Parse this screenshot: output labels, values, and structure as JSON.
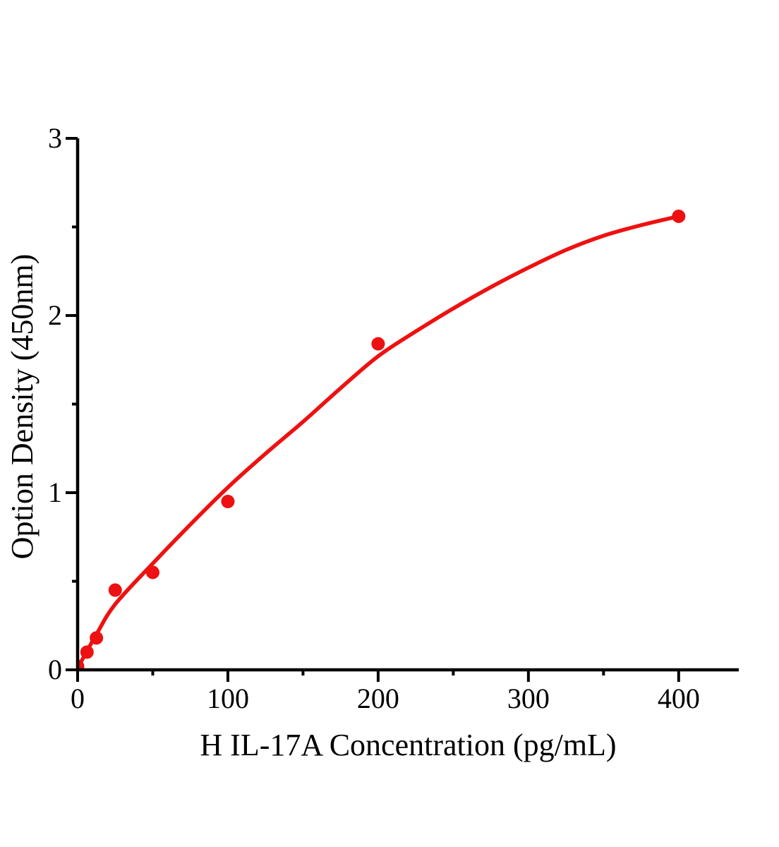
{
  "figure": {
    "background": "#ffffff",
    "text_color": "#000000"
  },
  "chart_data": {
    "type": "scatter",
    "title": "",
    "xlabel": "H IL-17A Concentration (pg/mL)",
    "ylabel": "Option Density (450nm)",
    "xlim": [
      0,
      440
    ],
    "ylim": [
      0,
      3
    ],
    "grid": false,
    "legend": false,
    "axis_color": "#000000",
    "accent_color": "#ee1111",
    "x_major_ticks": [
      0,
      100,
      200,
      300,
      400
    ],
    "x_minor_ticks": [
      50,
      150,
      250,
      350
    ],
    "y_major_ticks": [
      0,
      1,
      2,
      3
    ],
    "y_minor_ticks": [
      0.5,
      1.5,
      2.5
    ],
    "points": [
      {
        "x": 0,
        "y": 0.02
      },
      {
        "x": 6.25,
        "y": 0.1
      },
      {
        "x": 12.5,
        "y": 0.18
      },
      {
        "x": 25,
        "y": 0.45
      },
      {
        "x": 50,
        "y": 0.55
      },
      {
        "x": 100,
        "y": 0.95
      },
      {
        "x": 200,
        "y": 1.84
      },
      {
        "x": 400,
        "y": 2.56
      }
    ],
    "fit_curve": [
      [
        0,
        0.01
      ],
      [
        12.5,
        0.2
      ],
      [
        25,
        0.37
      ],
      [
        50,
        0.6
      ],
      [
        75,
        0.82
      ],
      [
        100,
        1.03
      ],
      [
        125,
        1.22
      ],
      [
        150,
        1.4
      ],
      [
        175,
        1.59
      ],
      [
        200,
        1.77
      ],
      [
        225,
        1.91
      ],
      [
        250,
        2.04
      ],
      [
        275,
        2.16
      ],
      [
        300,
        2.27
      ],
      [
        325,
        2.37
      ],
      [
        350,
        2.45
      ],
      [
        375,
        2.51
      ],
      [
        400,
        2.56
      ]
    ]
  }
}
